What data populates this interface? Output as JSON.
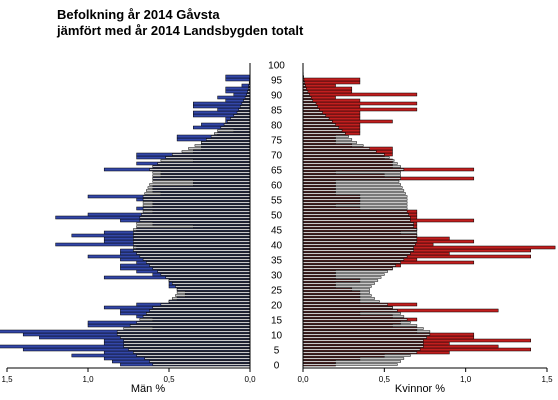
{
  "chart_data": {
    "type": "bar",
    "title_line1": "Befolkning år 2014 Gåvsta",
    "title_line2": "jämfört med år 2014 Landsbygden totalt",
    "left_xlabel": "Män %",
    "right_xlabel": "Kvinnor %",
    "xlim": [
      0,
      1.5
    ],
    "left_ticks": [
      "1,5",
      "1,0",
      "0,5",
      "0,0"
    ],
    "right_ticks": [
      "0,0",
      "0,5",
      "1,0",
      "1,5"
    ],
    "age_ticks": [
      "100",
      "95",
      "90",
      "85",
      "80",
      "75",
      "70",
      "65",
      "60",
      "55",
      "50",
      "45",
      "40",
      "35",
      "30",
      "25",
      "20",
      "15",
      "10",
      "5",
      "0"
    ],
    "ages_from": 0,
    "ages_to": 100,
    "colors": {
      "men": "#3347a8",
      "women": "#c21f1f",
      "reference": "#c8c8c8",
      "outline": "#000000"
    },
    "series": [
      {
        "name": "",
        "sex": "men",
        "values": [
          0.8,
          0.85,
          0.9,
          1.1,
          0.9,
          1.4,
          1.6,
          0.9,
          0.9,
          1.3,
          1.4,
          1.55,
          0.6,
          1.0,
          1.0,
          0.6,
          0.7,
          0.8,
          0.8,
          0.9,
          0.7,
          0.5,
          0.45,
          0.4,
          0.4,
          0.45,
          0.5,
          0.5,
          0.5,
          0.9,
          0.6,
          0.7,
          0.8,
          0.8,
          0.7,
          0.8,
          1.0,
          0.8,
          0.8,
          0.7,
          1.2,
          0.9,
          0.9,
          1.1,
          0.9,
          0.7,
          0.35,
          0.6,
          0.8,
          1.2,
          1.0,
          0.6,
          0.7,
          0.6,
          0.6,
          0.7,
          1.0,
          0.55,
          0.6,
          0.6,
          0.35,
          0.35,
          0.6,
          0.55,
          0.55,
          0.9,
          0.6,
          0.7,
          0.35,
          0.7,
          0.7,
          0.35,
          0.3,
          0.3,
          0.3,
          0.45,
          0.45,
          0.2,
          0.1,
          0.35,
          0.3,
          0.15,
          0.15,
          0.35,
          0.35,
          0.2,
          0.35,
          0.35,
          0.15,
          0.2,
          0.1,
          0.15,
          0.15,
          0.05,
          0.0,
          0.15,
          0.15,
          0.0,
          0.0,
          0.0,
          0.0
        ]
      },
      {
        "name": "",
        "sex": "women",
        "values": [
          0.2,
          0.2,
          0.35,
          0.5,
          0.9,
          1.4,
          1.2,
          0.9,
          1.4,
          1.05,
          1.05,
          0.7,
          0.7,
          0.55,
          0.6,
          0.7,
          0.55,
          0.35,
          1.2,
          0.55,
          0.7,
          0.35,
          0.35,
          0.35,
          0.35,
          0.3,
          0.2,
          0.2,
          0.35,
          0.2,
          0.2,
          0.2,
          0.55,
          0.6,
          1.05,
          0.7,
          1.4,
          0.9,
          1.4,
          1.55,
          0.8,
          1.05,
          0.9,
          0.7,
          0.6,
          0.7,
          0.7,
          0.7,
          1.05,
          0.7,
          0.7,
          0.7,
          0.35,
          0.2,
          0.35,
          0.35,
          0.35,
          0.2,
          0.2,
          0.2,
          0.2,
          0.2,
          1.05,
          0.5,
          0.2,
          1.05,
          0.55,
          0.55,
          0.55,
          0.5,
          0.55,
          0.55,
          0.55,
          0.3,
          0.2,
          0.2,
          0.2,
          0.35,
          0.35,
          0.35,
          0.35,
          0.55,
          0.35,
          0.35,
          0.35,
          0.7,
          0.35,
          0.7,
          0.35,
          0.2,
          0.7,
          0.3,
          0.3,
          0.2,
          0.35,
          0.35,
          0.0,
          0.0,
          0.0,
          0.0,
          0.0
        ]
      },
      {
        "name": "",
        "sex": "men-reference",
        "values": [
          0.6,
          0.62,
          0.65,
          0.7,
          0.72,
          0.75,
          0.78,
          0.78,
          0.78,
          0.8,
          0.82,
          0.82,
          0.78,
          0.74,
          0.7,
          0.68,
          0.66,
          0.64,
          0.62,
          0.6,
          0.55,
          0.5,
          0.48,
          0.46,
          0.45,
          0.45,
          0.46,
          0.48,
          0.5,
          0.52,
          0.55,
          0.57,
          0.6,
          0.62,
          0.64,
          0.66,
          0.68,
          0.7,
          0.72,
          0.72,
          0.72,
          0.72,
          0.72,
          0.72,
          0.72,
          0.72,
          0.7,
          0.7,
          0.68,
          0.68,
          0.67,
          0.66,
          0.66,
          0.66,
          0.66,
          0.66,
          0.66,
          0.65,
          0.64,
          0.63,
          0.62,
          0.6,
          0.6,
          0.6,
          0.6,
          0.62,
          0.6,
          0.57,
          0.55,
          0.52,
          0.48,
          0.42,
          0.38,
          0.34,
          0.3,
          0.27,
          0.24,
          0.22,
          0.2,
          0.18,
          0.16,
          0.14,
          0.12,
          0.1,
          0.08,
          0.07,
          0.06,
          0.05,
          0.04,
          0.03,
          0.02,
          0.015,
          0.01,
          0.008,
          0.005,
          0.003,
          0.002,
          0.001,
          0.001,
          0.0,
          0.0
        ]
      },
      {
        "name": "",
        "sex": "women-reference",
        "values": [
          0.58,
          0.6,
          0.62,
          0.66,
          0.7,
          0.72,
          0.74,
          0.74,
          0.74,
          0.76,
          0.78,
          0.78,
          0.74,
          0.7,
          0.66,
          0.64,
          0.62,
          0.6,
          0.58,
          0.55,
          0.52,
          0.47,
          0.44,
          0.42,
          0.41,
          0.41,
          0.42,
          0.44,
          0.46,
          0.48,
          0.5,
          0.52,
          0.55,
          0.57,
          0.6,
          0.62,
          0.64,
          0.66,
          0.68,
          0.68,
          0.69,
          0.7,
          0.7,
          0.7,
          0.7,
          0.7,
          0.68,
          0.68,
          0.66,
          0.66,
          0.65,
          0.64,
          0.64,
          0.64,
          0.64,
          0.64,
          0.64,
          0.63,
          0.62,
          0.61,
          0.6,
          0.59,
          0.6,
          0.6,
          0.6,
          0.62,
          0.6,
          0.58,
          0.56,
          0.53,
          0.5,
          0.45,
          0.41,
          0.37,
          0.33,
          0.3,
          0.28,
          0.26,
          0.24,
          0.22,
          0.2,
          0.18,
          0.16,
          0.14,
          0.12,
          0.1,
          0.09,
          0.08,
          0.06,
          0.05,
          0.04,
          0.03,
          0.02,
          0.015,
          0.01,
          0.006,
          0.004,
          0.002,
          0.001,
          0.0,
          0.0
        ]
      }
    ]
  }
}
